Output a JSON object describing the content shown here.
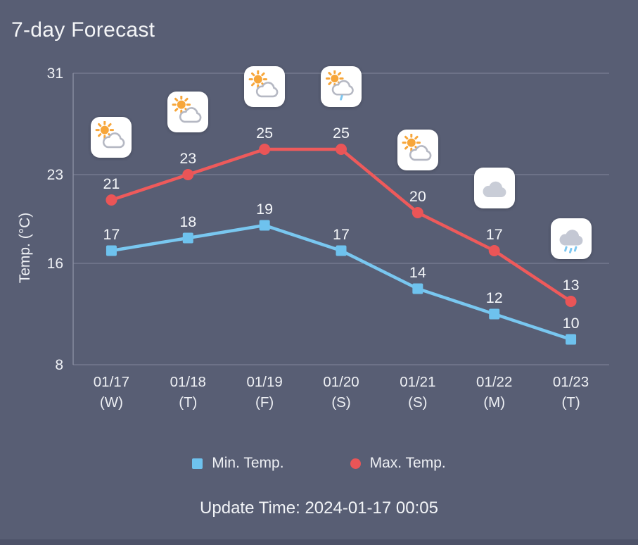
{
  "header": {
    "title": "7-day Forecast"
  },
  "chart_data": {
    "type": "line",
    "title": "7-day Forecast",
    "ylabel": "Temp. (°C)",
    "ylim": [
      8,
      31
    ],
    "yticks": [
      8,
      16,
      23,
      31
    ],
    "grid": true,
    "legend_position": "bottom",
    "categories": [
      {
        "date": "01/17",
        "day": "(W)"
      },
      {
        "date": "01/18",
        "day": "(T)"
      },
      {
        "date": "01/19",
        "day": "(F)"
      },
      {
        "date": "01/20",
        "day": "(S)"
      },
      {
        "date": "01/21",
        "day": "(S)"
      },
      {
        "date": "01/22",
        "day": "(M)"
      },
      {
        "date": "01/23",
        "day": "(T)"
      }
    ],
    "series": [
      {
        "name": "Min. Temp.",
        "marker": "square",
        "color": "#6ec2ee",
        "line_color": "#79c7f0",
        "values": [
          17,
          18,
          19,
          17,
          14,
          12,
          10
        ]
      },
      {
        "name": "Max. Temp.",
        "marker": "circle",
        "color": "#ea5557",
        "line_color": "#ee5a5b",
        "values": [
          21,
          23,
          25,
          25,
          20,
          17,
          13
        ]
      }
    ],
    "day_icons": [
      "partly-sunny",
      "partly-sunny",
      "partly-sunny",
      "partly-sunny-rain",
      "partly-sunny",
      "cloudy",
      "rainy"
    ]
  },
  "legend": {
    "items": [
      {
        "label": "Min. Temp.",
        "marker": "square",
        "color": "#6ec2ee"
      },
      {
        "label": "Max. Temp.",
        "marker": "circle",
        "color": "#ea5557"
      }
    ]
  },
  "footer": {
    "update_time": "Update Time: 2024-01-17 00:05"
  }
}
